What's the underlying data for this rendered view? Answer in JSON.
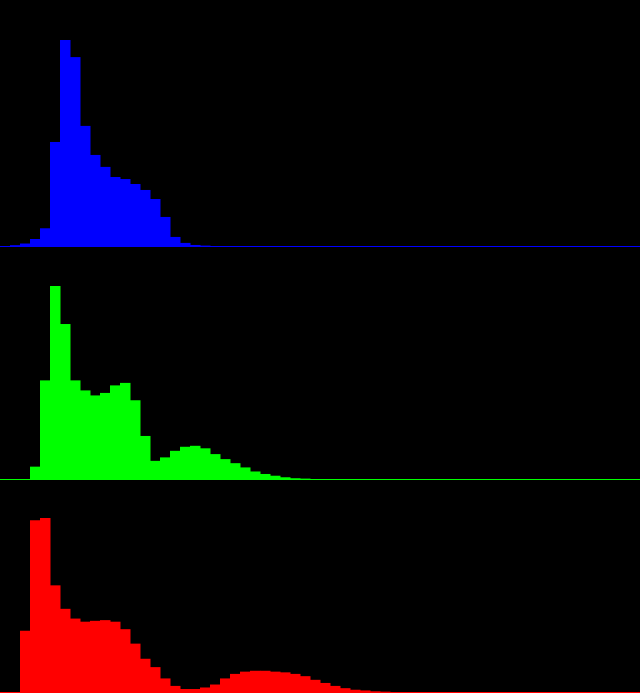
{
  "chart_data": [
    {
      "type": "bar",
      "channel": "blue",
      "color": "#0000ff",
      "bins": 64,
      "x": [
        0,
        1,
        2,
        3,
        4,
        5,
        6,
        7,
        8,
        9,
        10,
        11,
        12,
        13,
        14,
        15,
        16,
        17,
        18,
        19,
        20,
        21,
        22,
        23,
        24,
        25,
        26,
        27,
        28,
        29,
        30,
        31,
        32,
        33,
        34,
        35,
        36,
        37,
        38,
        39,
        40,
        41,
        42,
        43,
        44,
        45,
        46,
        47,
        48,
        49,
        50,
        51,
        52,
        53,
        54,
        55,
        56,
        57,
        58,
        59,
        60,
        61,
        62,
        63
      ],
      "values": [
        0,
        0.4,
        1.2,
        3.4,
        8.6,
        50.5,
        100,
        91.7,
        58.3,
        44.2,
        38.4,
        33.5,
        32.5,
        30.1,
        27.2,
        22.8,
        14.1,
        4.4,
        1.5,
        0.5,
        0.2,
        0,
        0,
        0,
        0,
        0,
        0,
        0,
        0,
        0,
        0,
        0,
        0,
        0,
        0,
        0,
        0,
        0,
        0,
        0,
        0,
        0,
        0,
        0,
        0,
        0,
        0,
        0,
        0,
        0,
        0,
        0,
        0,
        0,
        0,
        0,
        0,
        0,
        0,
        0,
        0,
        0,
        0,
        0
      ],
      "ylim": [
        0,
        100
      ]
    },
    {
      "type": "bar",
      "channel": "green",
      "color": "#00ff00",
      "bins": 64,
      "x": [
        0,
        1,
        2,
        3,
        4,
        5,
        6,
        7,
        8,
        9,
        10,
        11,
        12,
        13,
        14,
        15,
        16,
        17,
        18,
        19,
        20,
        21,
        22,
        23,
        24,
        25,
        26,
        27,
        28,
        29,
        30,
        31,
        32,
        33,
        34,
        35,
        36,
        37,
        38,
        39,
        40,
        41,
        42,
        43,
        44,
        45,
        46,
        47,
        48,
        49,
        50,
        51,
        52,
        53,
        54,
        55,
        56,
        57,
        58,
        59,
        60,
        61,
        62,
        63
      ],
      "values": [
        0,
        0,
        0,
        6.4,
        51.1,
        100,
        80.3,
        51.1,
        45.9,
        43.3,
        44.6,
        48.5,
        49.8,
        40.8,
        22.3,
        9.4,
        11.2,
        14.6,
        16.7,
        17.2,
        15.9,
        12.9,
        10.3,
        8.2,
        6.0,
        3.9,
        2.6,
        1.7,
        0.9,
        0.4,
        0.2,
        0,
        0,
        0,
        0,
        0,
        0,
        0,
        0,
        0,
        0,
        0,
        0,
        0,
        0,
        0,
        0,
        0,
        0,
        0,
        0,
        0,
        0,
        0,
        0,
        0,
        0,
        0,
        0,
        0,
        0,
        0,
        0,
        0
      ],
      "ylim": [
        0,
        100
      ]
    },
    {
      "type": "bar",
      "channel": "red",
      "color": "#ff0000",
      "bins": 64,
      "x": [
        0,
        1,
        2,
        3,
        4,
        5,
        6,
        7,
        8,
        9,
        10,
        11,
        12,
        13,
        14,
        15,
        16,
        17,
        18,
        19,
        20,
        21,
        22,
        23,
        24,
        25,
        26,
        27,
        28,
        29,
        30,
        31,
        32,
        33,
        34,
        35,
        36,
        37,
        38,
        39,
        40,
        41,
        42,
        43,
        44,
        45,
        46,
        47,
        48,
        49,
        50,
        51,
        52,
        53,
        54,
        55,
        56,
        57,
        58,
        59,
        60,
        61,
        62,
        63
      ],
      "values": [
        0,
        0,
        35.2,
        98.7,
        100,
        61.3,
        47.8,
        42.2,
        40.4,
        40.9,
        41.3,
        40.4,
        36.1,
        27.8,
        19.1,
        14.3,
        7.8,
        3.5,
        1.7,
        1.7,
        2.6,
        4.3,
        7.8,
        10.4,
        11.7,
        12.2,
        12.2,
        11.7,
        11.3,
        10.4,
        9.1,
        7.0,
        5.2,
        3.5,
        2.2,
        1.3,
        0.9,
        0.4,
        0.2,
        0,
        0,
        0,
        0,
        0,
        0,
        0,
        0,
        0,
        0,
        0,
        0,
        0,
        0,
        0,
        0,
        0,
        0,
        0,
        0,
        0,
        0,
        0,
        0,
        0
      ],
      "ylim": [
        0,
        100
      ]
    }
  ]
}
